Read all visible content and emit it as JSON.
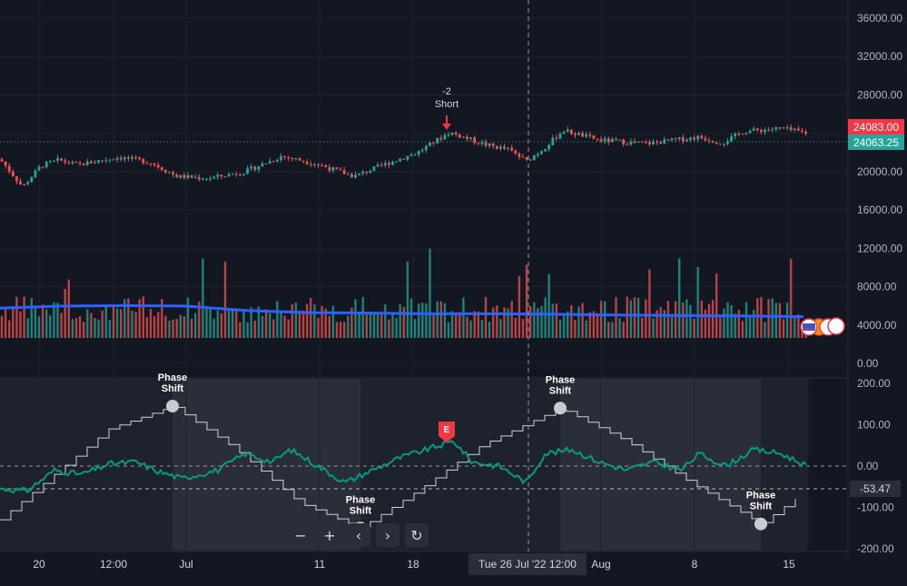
{
  "chart_data": [
    {
      "type": "candlestick",
      "panel": "price",
      "y_ticks": [
        "36000.00",
        "32000.00",
        "28000.00",
        "24000.00",
        "20000.00",
        "16000.00",
        "12000.00",
        "8000.00",
        "4000.00",
        "0.00"
      ],
      "ylim": [
        0,
        37500
      ],
      "current_price_label": "24083.00",
      "last_price_label": "24063.25",
      "current_price": 24083,
      "last_price": 24063.25,
      "close_path": [
        {
          "x": 0,
          "y": 21300
        },
        {
          "x": 25,
          "y": 18400
        },
        {
          "x": 45,
          "y": 20600
        },
        {
          "x": 65,
          "y": 21200
        },
        {
          "x": 85,
          "y": 20700
        },
        {
          "x": 130,
          "y": 21500
        },
        {
          "x": 165,
          "y": 21000
        },
        {
          "x": 195,
          "y": 19500
        },
        {
          "x": 230,
          "y": 19300
        },
        {
          "x": 270,
          "y": 20000
        },
        {
          "x": 310,
          "y": 21600
        },
        {
          "x": 345,
          "y": 20900
        },
        {
          "x": 390,
          "y": 19500
        },
        {
          "x": 425,
          "y": 20800
        },
        {
          "x": 460,
          "y": 22000
        },
        {
          "x": 495,
          "y": 24100
        },
        {
          "x": 535,
          "y": 22800
        },
        {
          "x": 560,
          "y": 22300
        },
        {
          "x": 580,
          "y": 21100
        },
        {
          "x": 600,
          "y": 22500
        },
        {
          "x": 620,
          "y": 24300
        },
        {
          "x": 660,
          "y": 23300
        },
        {
          "x": 710,
          "y": 22900
        },
        {
          "x": 770,
          "y": 23600
        },
        {
          "x": 795,
          "y": 23000
        },
        {
          "x": 820,
          "y": 24200
        },
        {
          "x": 860,
          "y": 24500
        },
        {
          "x": 890,
          "y": 24000
        }
      ],
      "volume_ma": [
        7300,
        7800,
        7900,
        7800,
        6700,
        6200,
        6100,
        5900,
        5900,
        5800,
        5600,
        5500,
        5400,
        5200
      ],
      "annotations": [
        {
          "text": "-2",
          "x_index": 495
        },
        {
          "text": "Short",
          "x_index": 495
        }
      ],
      "colors": {
        "up": "#26a69a",
        "down": "#ef5350",
        "volume_ma": "#2962ff",
        "last_price": "#26a69a",
        "current_price": "#f23645"
      }
    },
    {
      "type": "line",
      "panel": "oscillator",
      "y_ticks": [
        "200.00",
        "100.00",
        "0.00",
        "-100.00",
        "-200.00"
      ],
      "ylim": [
        -200,
        200
      ],
      "current_value_label": "-53.47",
      "current_value": -53.47,
      "reference_line": -53.47,
      "oscillator": [
        {
          "x": 0,
          "y": -55
        },
        {
          "x": 30,
          "y": -60
        },
        {
          "x": 60,
          "y": -10
        },
        {
          "x": 90,
          "y": -20
        },
        {
          "x": 120,
          "y": 5
        },
        {
          "x": 150,
          "y": 10
        },
        {
          "x": 170,
          "y": -10
        },
        {
          "x": 200,
          "y": -30
        },
        {
          "x": 240,
          "y": -10
        },
        {
          "x": 270,
          "y": 30
        },
        {
          "x": 300,
          "y": 10
        },
        {
          "x": 320,
          "y": 40
        },
        {
          "x": 350,
          "y": 0
        },
        {
          "x": 380,
          "y": -40
        },
        {
          "x": 410,
          "y": -10
        },
        {
          "x": 440,
          "y": 20
        },
        {
          "x": 470,
          "y": 40
        },
        {
          "x": 500,
          "y": 60
        },
        {
          "x": 520,
          "y": 10
        },
        {
          "x": 550,
          "y": 0
        },
        {
          "x": 580,
          "y": -40
        },
        {
          "x": 600,
          "y": 30
        },
        {
          "x": 630,
          "y": 40
        },
        {
          "x": 660,
          "y": 10
        },
        {
          "x": 690,
          "y": -10
        },
        {
          "x": 720,
          "y": 10
        },
        {
          "x": 750,
          "y": -10
        },
        {
          "x": 770,
          "y": 30
        },
        {
          "x": 800,
          "y": 0
        },
        {
          "x": 830,
          "y": 40
        },
        {
          "x": 860,
          "y": 30
        },
        {
          "x": 890,
          "y": 0
        }
      ],
      "phase_wave": [
        {
          "x": 0,
          "y": -130
        },
        {
          "x": 60,
          "y": -20
        },
        {
          "x": 120,
          "y": 90
        },
        {
          "x": 190,
          "y": 145
        },
        {
          "x": 260,
          "y": 40
        },
        {
          "x": 330,
          "y": -90
        },
        {
          "x": 397,
          "y": -150
        },
        {
          "x": 460,
          "y": -60
        },
        {
          "x": 530,
          "y": 50
        },
        {
          "x": 617,
          "y": 140
        },
        {
          "x": 690,
          "y": 60
        },
        {
          "x": 760,
          "y": -40
        },
        {
          "x": 838,
          "y": -140
        },
        {
          "x": 885,
          "y": -65
        }
      ],
      "phase_shift_labels": [
        {
          "line1": "Phase",
          "line2": "Shift",
          "x_index": 190,
          "pos": "above",
          "y": 145
        },
        {
          "line1": "Phase",
          "line2": "Shift",
          "x_index": 397,
          "pos": "above",
          "y": -150
        },
        {
          "line1": "Phase",
          "line2": "Shift",
          "x_index": 617,
          "pos": "above",
          "y": 140
        },
        {
          "line1": "Phase",
          "line2": "Shift",
          "x_index": 838,
          "pos": "above",
          "y": -140
        }
      ],
      "event_marker": {
        "label": "E",
        "x_index": 492
      },
      "colors": {
        "oscillator": "#089981",
        "phase_wave": "#cfd2d8",
        "event": "#f23645"
      }
    }
  ],
  "x_axis": {
    "ticks": [
      {
        "label": "20",
        "x": 43
      },
      {
        "label": "12:00",
        "x": 125
      },
      {
        "label": "Jul",
        "x": 205
      },
      {
        "label": "11",
        "x": 352
      },
      {
        "label": "18",
        "x": 455
      },
      {
        "label": "Aug",
        "x": 662
      },
      {
        "label": "8",
        "x": 765
      },
      {
        "label": "15",
        "x": 869
      }
    ],
    "crosshair_label": "Tue 26 Jul '22   12:00"
  },
  "toolbar": {
    "zoom_out": "−",
    "zoom_in": "+",
    "scroll_left": "‹",
    "scroll_right": "›",
    "reset": "↻"
  }
}
